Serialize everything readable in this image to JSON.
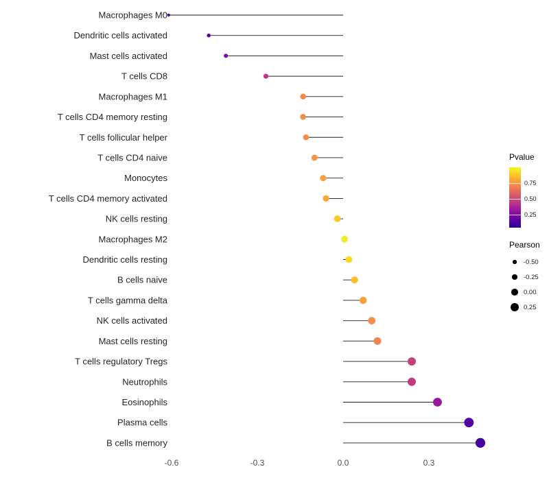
{
  "chart_data": {
    "type": "scatter",
    "variant": "lollipop",
    "title": "",
    "xlabel": "",
    "ylabel": "",
    "x_tick_values": [
      -0.6,
      -0.3,
      0.0,
      0.3
    ],
    "x_tick_labels": [
      "-0.6",
      "-0.3",
      "0.0",
      "0.3"
    ],
    "xlim": [
      -0.72,
      0.58
    ],
    "categories": [
      "Macrophages M0",
      "Dendritic cells activated",
      "Mast cells activated",
      "T cells CD8",
      "Macrophages M1",
      "T cells CD4 memory resting",
      "T cells follicular helper",
      "T cells CD4 naive",
      "Monocytes",
      "T cells CD4 memory activated",
      "NK cells resting",
      "Macrophages M2",
      "Dendritic cells resting",
      "B cells naive",
      "T cells gamma delta",
      "NK cells activated",
      "Mast cells resting",
      "T cells regulatory Tregs",
      "Neutrophils",
      "Eosinophils",
      "Plasma cells",
      "B cells memory"
    ],
    "series": [
      {
        "name": "Pearson",
        "values": [
          -0.61,
          -0.47,
          -0.41,
          -0.27,
          -0.14,
          -0.14,
          -0.13,
          -0.1,
          -0.07,
          -0.06,
          -0.02,
          0.005,
          0.02,
          0.04,
          0.07,
          0.1,
          0.12,
          0.24,
          0.24,
          0.33,
          0.44,
          0.48
        ]
      },
      {
        "name": "Pvalue",
        "values": [
          0.12,
          0.15,
          0.25,
          0.45,
          0.72,
          0.72,
          0.73,
          0.75,
          0.78,
          0.8,
          0.88,
          0.97,
          0.93,
          0.86,
          0.78,
          0.73,
          0.7,
          0.48,
          0.46,
          0.33,
          0.15,
          0.12
        ]
      }
    ],
    "legend": {
      "pvalue": {
        "title": "Pvalue",
        "tick_labels": [
          "0.75",
          "0.50",
          "0.25"
        ],
        "tick_values": [
          0.75,
          0.5,
          0.25
        ],
        "domain": [
          0.05,
          1.0
        ]
      },
      "pearson": {
        "title": "Pearson",
        "tick_labels": [
          "-0.50",
          "-0.25",
          "0.00",
          "0.25"
        ],
        "tick_values": [
          -0.5,
          -0.25,
          0.0,
          0.25
        ]
      }
    },
    "palette": {
      "name": "plasma",
      "stops": [
        "#0d0887",
        "#41049d",
        "#6a00a8",
        "#8f0da4",
        "#b12a90",
        "#cc4778",
        "#e16462",
        "#f2844b",
        "#fca636",
        "#fcce25",
        "#f0f921"
      ]
    },
    "colors": {
      "background": "#ffffff",
      "segment": "#1a1a1a",
      "axis_text": "#4d4d4d",
      "category_text": "#262626",
      "legend_dot": "#000000"
    }
  }
}
